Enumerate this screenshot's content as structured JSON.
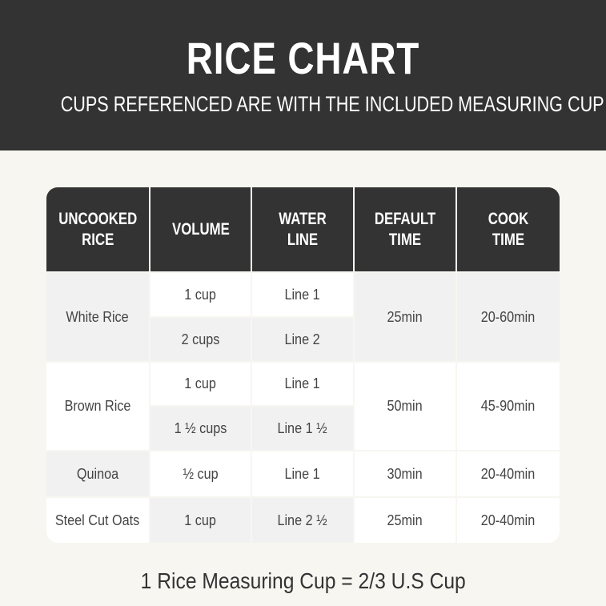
{
  "header": {
    "title": "RICE CHART",
    "subtitle": "CUPS REFERENCED ARE WITH THE INCLUDED MEASURING CUP"
  },
  "table": {
    "columns": [
      "UNCOOKED RICE",
      "VOLUME",
      "WATER LINE",
      "DEFAULT TIME",
      "COOK TIME"
    ],
    "groups": [
      {
        "rice": "White Rice",
        "entries": [
          {
            "volume": "1 cup",
            "water_line": "Line 1"
          },
          {
            "volume": "2 cups",
            "water_line": "Line 2"
          }
        ],
        "default_time": "25min",
        "cook_time": "20-60min"
      },
      {
        "rice": "Brown Rice",
        "entries": [
          {
            "volume": "1 cup",
            "water_line": "Line 1"
          },
          {
            "volume": "1 ½ cups",
            "water_line": "Line 1 ½"
          }
        ],
        "default_time": "50min",
        "cook_time": "45-90min"
      },
      {
        "rice": "Quinoa",
        "entries": [
          {
            "volume": "½ cup",
            "water_line": "Line 1"
          }
        ],
        "default_time": "30min",
        "cook_time": "20-40min"
      },
      {
        "rice": "Steel Cut Oats",
        "entries": [
          {
            "volume": "1 cup",
            "water_line": "Line 2 ½"
          }
        ],
        "default_time": "25min",
        "cook_time": "20-40min"
      }
    ]
  },
  "footer": {
    "note": "1 Rice Measuring Cup = 2/3 U.S Cup"
  }
}
